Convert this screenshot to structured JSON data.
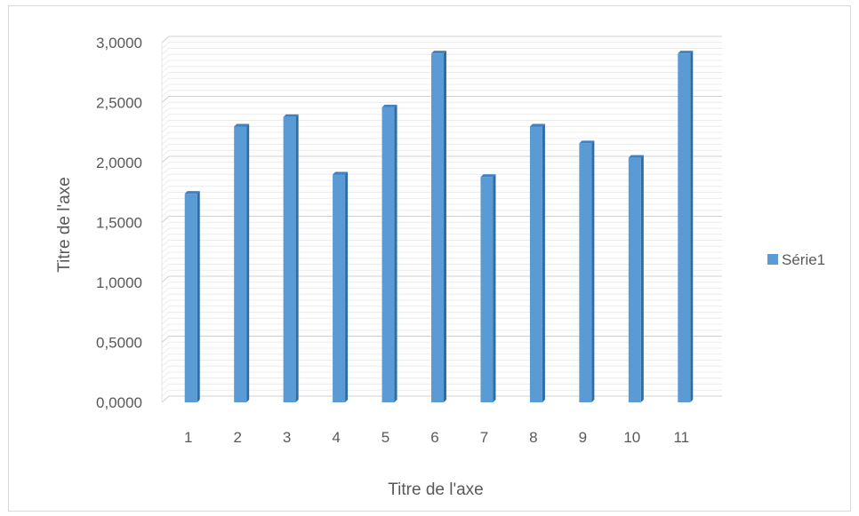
{
  "chart_data": {
    "type": "bar",
    "style": "3d-clustered-column",
    "categories": [
      "1",
      "2",
      "3",
      "4",
      "5",
      "6",
      "7",
      "8",
      "9",
      "10",
      "11"
    ],
    "series": [
      {
        "name": "Série1",
        "values": [
          1.74,
          2.3,
          2.38,
          1.9,
          2.46,
          2.91,
          1.88,
          2.3,
          2.16,
          2.04,
          2.91
        ],
        "color": "#5b9bd5"
      }
    ],
    "xlabel": "Titre de l'axe",
    "ylabel": "Titre de l'axe",
    "ylim": [
      0,
      3
    ],
    "yticks": [
      "0,0000",
      "0,5000",
      "1,0000",
      "1,5000",
      "2,0000",
      "2,5000",
      "3,0000"
    ],
    "grid": true,
    "legend": "right"
  }
}
